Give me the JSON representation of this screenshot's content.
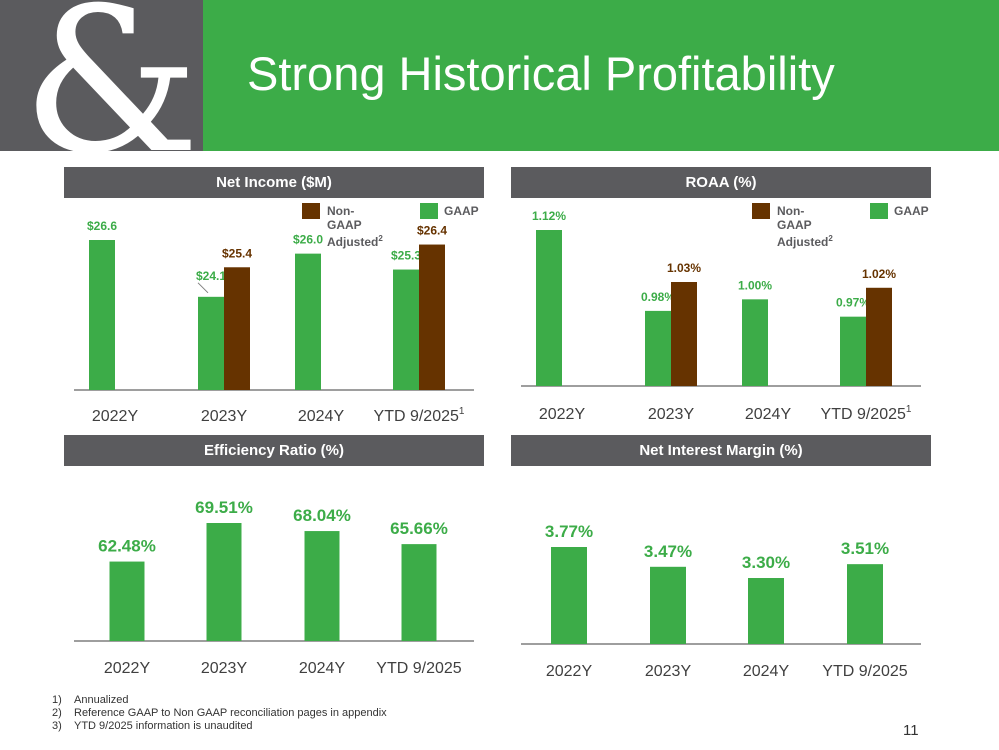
{
  "header": {
    "logo_text": "&",
    "title": "Strong Historical Profitability"
  },
  "colors": {
    "gaap": "#3cac48",
    "non_gaap": "#663300",
    "panel_bar": "#5b5b5e"
  },
  "legend": {
    "non_gaap": "Non-GAAP Adjusted",
    "non_gaap_sup": "2",
    "gaap": "GAAP"
  },
  "chart_data": [
    {
      "type": "bar",
      "title": "Net Income ($M)",
      "categories": [
        "2022Y",
        "2023Y",
        "2024Y",
        "YTD 9/2025"
      ],
      "category_sup": [
        "",
        "",
        "",
        "1"
      ],
      "series": [
        {
          "name": "GAAP",
          "values": [
            26.6,
            24.1,
            26.0,
            25.3
          ],
          "labels": [
            "$26.6",
            "$24.1",
            "$26.0",
            "$25.3"
          ]
        },
        {
          "name": "Non-GAAP Adjusted",
          "values": [
            null,
            25.4,
            null,
            26.4
          ],
          "labels": [
            "",
            "$25.4",
            "",
            "$26.4"
          ]
        }
      ],
      "ylim": [
        20,
        28
      ],
      "grid": false,
      "legend": "top-right"
    },
    {
      "type": "bar",
      "title": "ROAA (%)",
      "categories": [
        "2022Y",
        "2023Y",
        "2024Y",
        "YTD 9/2025"
      ],
      "category_sup": [
        "",
        "",
        "",
        "1"
      ],
      "series": [
        {
          "name": "GAAP",
          "values": [
            1.12,
            0.98,
            1.0,
            0.97
          ],
          "labels": [
            "1.12%",
            "0.98%",
            "1.00%",
            "0.97%"
          ]
        },
        {
          "name": "Non-GAAP Adjusted",
          "values": [
            null,
            1.03,
            null,
            1.02
          ],
          "labels": [
            "",
            "1.03%",
            "",
            "1.02%"
          ]
        }
      ],
      "ylim": [
        0.85,
        1.15
      ],
      "grid": false,
      "legend": "top-right"
    },
    {
      "type": "bar",
      "title": "Efficiency Ratio (%)",
      "categories": [
        "2022Y",
        "2023Y",
        "2024Y",
        "YTD 9/2025"
      ],
      "series": [
        {
          "name": "GAAP",
          "values": [
            62.48,
            69.51,
            68.04,
            65.66
          ],
          "labels": [
            "62.48%",
            "69.51%",
            "68.04%",
            "65.66%"
          ]
        }
      ],
      "ylim": [
        48,
        72
      ],
      "grid": false
    },
    {
      "type": "bar",
      "title": "Net Interest Margin (%)",
      "categories": [
        "2022Y",
        "2023Y",
        "2024Y",
        "YTD 9/2025"
      ],
      "series": [
        {
          "name": "GAAP",
          "values": [
            3.77,
            3.47,
            3.3,
            3.51
          ],
          "labels": [
            "3.77%",
            "3.47%",
            "3.30%",
            "3.51%"
          ]
        }
      ],
      "ylim": [
        2.3,
        3.85
      ],
      "grid": false
    }
  ],
  "footnotes": [
    {
      "num": "1)",
      "text": "Annualized"
    },
    {
      "num": "2)",
      "text": "Reference GAAP to Non GAAP reconciliation pages in appendix"
    },
    {
      "num": "3)",
      "text": "YTD 9/2025 information is unaudited"
    }
  ],
  "page_number": "11"
}
